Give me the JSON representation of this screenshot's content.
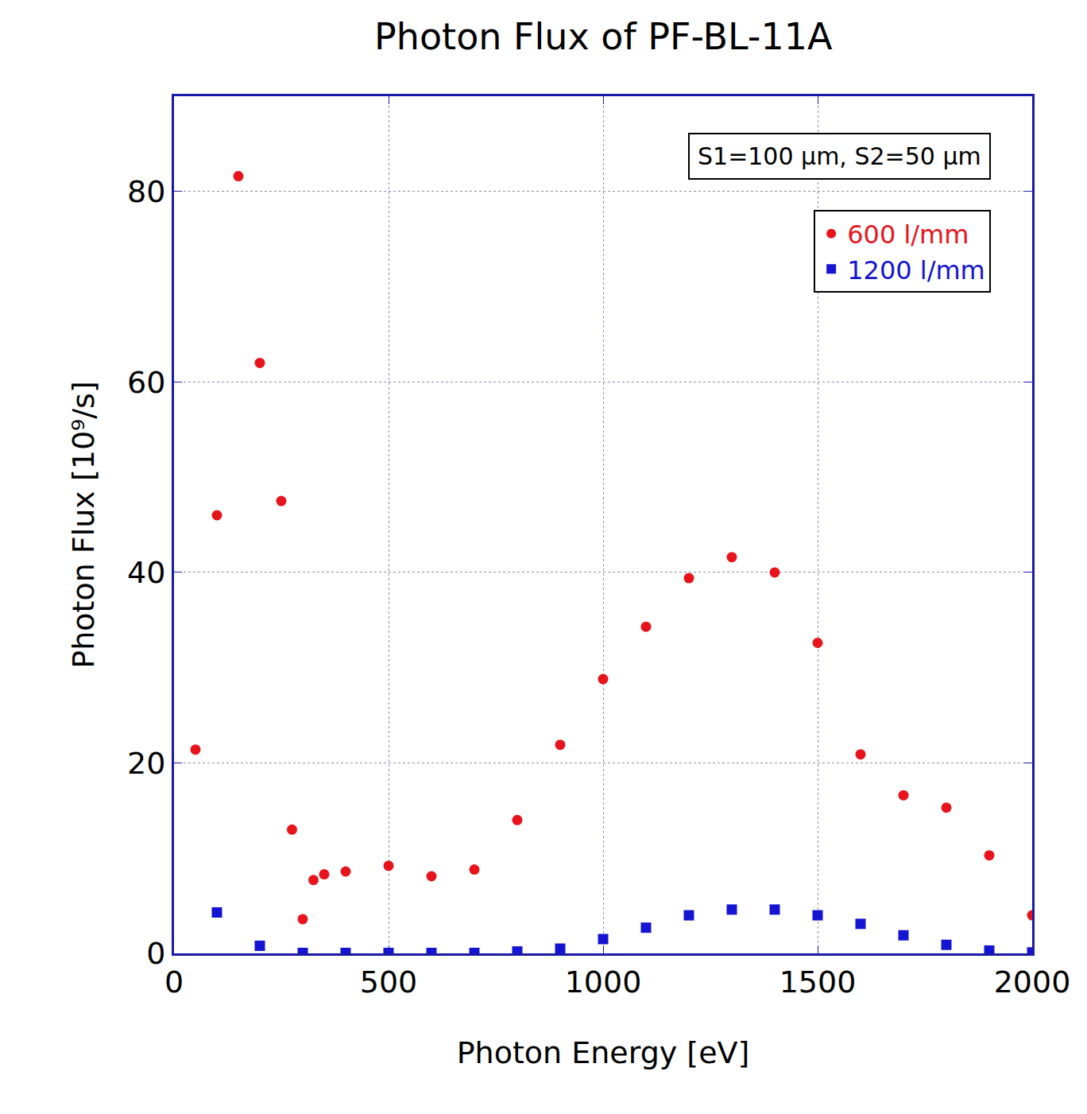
{
  "chart_data": {
    "type": "scatter",
    "title": "Photon Flux of PF-BL-11A",
    "x_label": "Photon Energy [eV]",
    "y_label": "Photon Flux [10⁹/s]",
    "annotation": "S1=100 μm, S2=50 μm",
    "xlim": [
      0,
      2000
    ],
    "xticks": [
      0,
      500,
      1000,
      1500,
      2000
    ],
    "ylim": [
      0,
      90
    ],
    "yticks": [
      0,
      20,
      40,
      60,
      80
    ],
    "grid": true,
    "legend": "top right",
    "series": [
      {
        "name": "600 l/mm",
        "color": "#e8141b",
        "marker": "circle",
        "x": [
          50,
          100,
          150,
          200,
          250,
          275,
          300,
          325,
          350,
          400,
          500,
          600,
          700,
          800,
          900,
          1000,
          1100,
          1200,
          1300,
          1400,
          1500,
          1600,
          1700,
          1800,
          1900,
          2000
        ],
        "values": [
          21.4,
          46.0,
          81.6,
          62.0,
          47.5,
          13.0,
          3.6,
          7.7,
          8.3,
          8.6,
          9.2,
          8.1,
          8.8,
          14.0,
          21.9,
          28.8,
          34.3,
          39.4,
          41.6,
          40.0,
          32.6,
          20.9,
          16.6,
          15.3,
          10.3,
          4.0
        ]
      },
      {
        "name": "1200 l/mm",
        "color": "#1414d2",
        "marker": "square",
        "x": [
          100,
          200,
          300,
          400,
          500,
          600,
          700,
          800,
          900,
          1000,
          1100,
          1200,
          1300,
          1400,
          1500,
          1600,
          1700,
          1800,
          1900,
          2000
        ],
        "values": [
          4.3,
          0.8,
          0.05,
          0.05,
          0.05,
          0.05,
          0.05,
          0.2,
          0.5,
          1.5,
          2.7,
          4.0,
          4.6,
          4.6,
          4.0,
          3.1,
          1.9,
          0.9,
          0.3,
          0.1
        ]
      }
    ]
  }
}
